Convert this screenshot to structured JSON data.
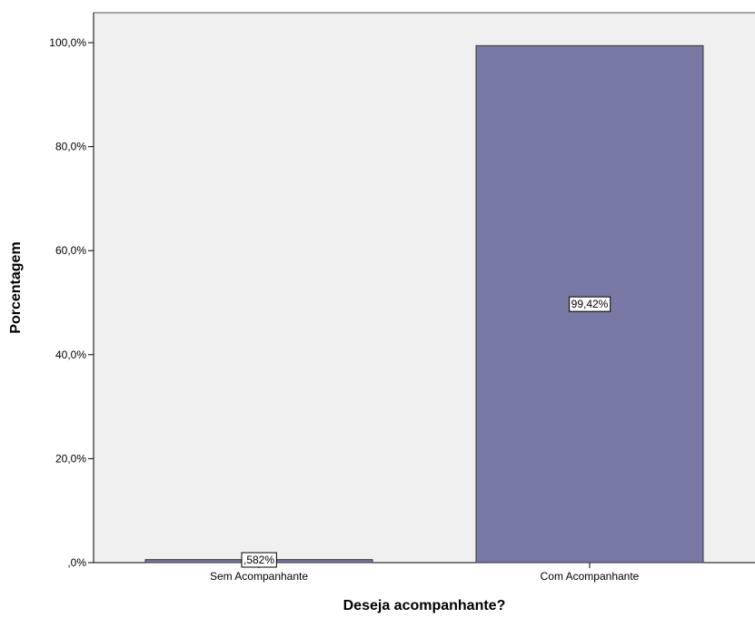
{
  "chart_data": {
    "type": "bar",
    "title": "",
    "xlabel": "Deseja acompanhante?",
    "ylabel": "Porcentagem",
    "categories": [
      "Sem Acompanhante",
      "Com Acompanhante"
    ],
    "values": [
      0.582,
      99.42
    ],
    "data_labels": [
      ",582%",
      "99,42%"
    ],
    "ylim": [
      0,
      105
    ],
    "yticks": [
      0,
      20,
      40,
      60,
      80,
      100
    ],
    "ytick_labels": [
      ",0%",
      "20,0%",
      "40,0%",
      "60,0%",
      "80,0%",
      "100,0%"
    ],
    "grid": false,
    "legend": "none",
    "colors": {
      "plot_background": "#f0f0f0",
      "bar_fill": "#7878a4",
      "bar_stroke": "#333333",
      "axis": "#000000",
      "frame": "#555555",
      "label_box_fill": "#ffffff"
    }
  }
}
